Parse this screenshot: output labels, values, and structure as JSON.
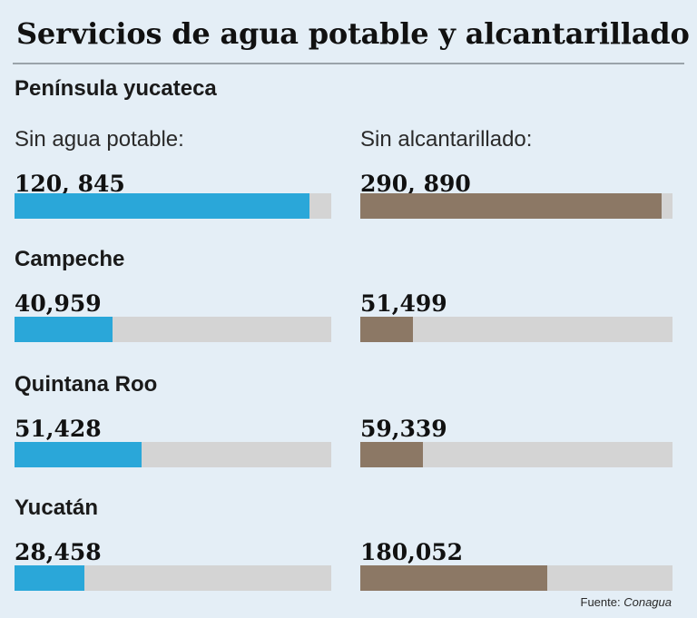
{
  "title": "Servicios de agua potable y alcantarillado",
  "columns": {
    "left": "Sin agua potable:",
    "right": "Sin alcantarillado:"
  },
  "colors": {
    "water": "#2aa7d9",
    "sewer": "#8c7865",
    "track": "#d4d4d4"
  },
  "chart_data": {
    "type": "bar",
    "title": "Servicios de agua potable y alcantarillado",
    "categories": [
      "Península yucateca",
      "Campeche",
      "Quintana Roo",
      "Yucatán"
    ],
    "series": [
      {
        "name": "Sin agua potable:",
        "values": [
          120845,
          40959,
          51428,
          28458
        ],
        "labels": [
          "120, 845",
          "40,959",
          "51,428",
          "28,458"
        ],
        "fill_fraction": [
          0.93,
          0.31,
          0.4,
          0.22
        ]
      },
      {
        "name": "Sin alcantarillado:",
        "values": [
          290890,
          51499,
          59339,
          180052
        ],
        "labels": [
          "290, 890",
          "51,499",
          "59,339",
          "180,052"
        ],
        "fill_fraction": [
          0.965,
          0.17,
          0.2,
          0.6
        ]
      }
    ]
  },
  "source": {
    "prefix": "Fuente: ",
    "name": "Conagua"
  }
}
